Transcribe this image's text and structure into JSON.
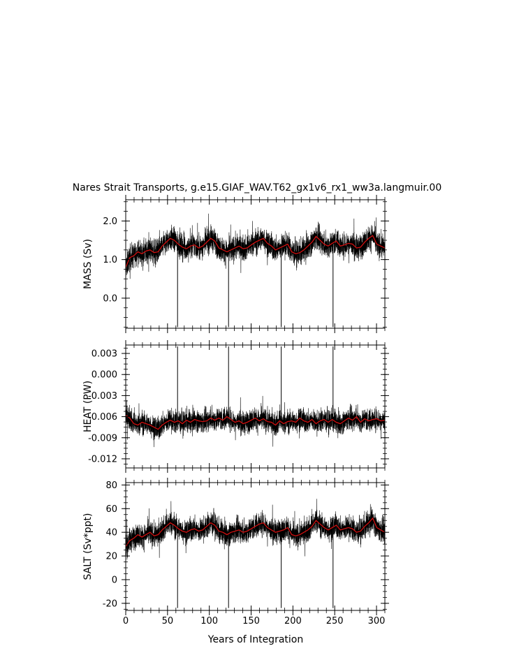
{
  "chart_data": {
    "type": "line",
    "title": "Nares Strait Transports, g.e15.GIAF_WAV.T62_gx1v6_rx1_ww3a.langmuir.00",
    "xlabel": "Years of Integration",
    "xlim": [
      0,
      310
    ],
    "x_ticks": [
      "0",
      "50",
      "100",
      "150",
      "200",
      "250",
      "300"
    ],
    "panels": [
      {
        "ylabel": "MASS (Sv)",
        "ylim": [
          -0.78,
          2.55
        ],
        "y_ticks": [
          0.0,
          1.0,
          2.0
        ],
        "y_tick_labels": [
          "0.0",
          "1.0",
          "2.0"
        ],
        "monthly_mean": 1.32,
        "monthly_spread": 0.32,
        "spike_low": -0.75,
        "annual_values": [
          0.8,
          1.05,
          1.1,
          1.2,
          1.15,
          1.22,
          1.25,
          1.18,
          1.2,
          1.35,
          1.45,
          1.55,
          1.5,
          1.4,
          1.32,
          1.28,
          1.35,
          1.38,
          1.3,
          1.35,
          1.45,
          1.55,
          1.48,
          1.3,
          1.25,
          1.2,
          1.25,
          1.3,
          1.35,
          1.28,
          1.3,
          1.38,
          1.45,
          1.5,
          1.55,
          1.42,
          1.35,
          1.25,
          1.3,
          1.35,
          1.4,
          1.2,
          1.15,
          1.18,
          1.25,
          1.35,
          1.45,
          1.6,
          1.5,
          1.4,
          1.35,
          1.42,
          1.48,
          1.35,
          1.38,
          1.42,
          1.4,
          1.3,
          1.32,
          1.45,
          1.55,
          1.62,
          1.4,
          1.35,
          1.3
        ],
        "series": [
          {
            "name": "",
            "color": "#000000",
            "style": "monthly"
          },
          {
            "name": "",
            "color": "#d01010",
            "style": "annual"
          }
        ]
      },
      {
        "ylabel": "HEAT (PW)",
        "ylim": [
          -0.0133,
          0.0042
        ],
        "y_ticks": [
          -0.012,
          -0.009,
          -0.006,
          -0.003,
          0.0,
          0.003
        ],
        "y_tick_labels": [
          "-0.012",
          "-0.009",
          "-0.006",
          "-0.003",
          "0.000",
          "0.003"
        ],
        "monthly_mean": -0.0066,
        "monthly_spread": 0.0016,
        "spike_high": 0.004,
        "annual_values": [
          -0.0058,
          -0.0062,
          -0.007,
          -0.0072,
          -0.0068,
          -0.007,
          -0.0072,
          -0.0075,
          -0.0078,
          -0.0072,
          -0.0068,
          -0.0065,
          -0.0068,
          -0.0066,
          -0.007,
          -0.0065,
          -0.0068,
          -0.0064,
          -0.0066,
          -0.0067,
          -0.0066,
          -0.0062,
          -0.0065,
          -0.0062,
          -0.0065,
          -0.006,
          -0.0064,
          -0.0068,
          -0.0066,
          -0.007,
          -0.0068,
          -0.0065,
          -0.0062,
          -0.0066,
          -0.0063,
          -0.0067,
          -0.0068,
          -0.0072,
          -0.0066,
          -0.007,
          -0.0067,
          -0.0066,
          -0.0068,
          -0.0062,
          -0.0066,
          -0.0068,
          -0.0064,
          -0.007,
          -0.0066,
          -0.0064,
          -0.0068,
          -0.0064,
          -0.0068,
          -0.007,
          -0.0066,
          -0.0062,
          -0.0065,
          -0.006,
          -0.0068,
          -0.0063,
          -0.0066,
          -0.0064,
          -0.0063,
          -0.0066,
          -0.0065
        ],
        "series": [
          {
            "name": "",
            "color": "#000000",
            "style": "monthly"
          },
          {
            "name": "",
            "color": "#d01010",
            "style": "annual"
          }
        ]
      },
      {
        "ylabel": "SALT (Sv*ppt)",
        "ylim": [
          -26,
          82
        ],
        "y_ticks": [
          -20,
          0,
          20,
          40,
          60,
          80
        ],
        "y_tick_labels": [
          "-20",
          "0",
          "20",
          "40",
          "60",
          "80"
        ],
        "monthly_mean": 42,
        "monthly_spread": 10,
        "spike_low": -24,
        "annual_values": [
          28,
          33,
          35,
          38,
          36,
          38,
          40,
          37,
          38,
          42,
          45,
          48,
          46,
          43,
          41,
          40,
          42,
          43,
          41,
          42,
          45,
          48,
          46,
          41,
          40,
          38,
          40,
          41,
          42,
          40,
          41,
          43,
          45,
          47,
          48,
          44,
          42,
          40,
          41,
          42,
          44,
          38,
          37,
          38,
          40,
          42,
          45,
          50,
          47,
          44,
          42,
          44,
          46,
          42,
          43,
          44,
          43,
          40,
          41,
          45,
          48,
          52,
          44,
          42,
          40
        ],
        "series": [
          {
            "name": "",
            "color": "#000000",
            "style": "monthly"
          },
          {
            "name": "",
            "color": "#d01010",
            "style": "annual"
          }
        ]
      }
    ],
    "spike_years": [
      62,
      123,
      186,
      248
    ],
    "grid": false,
    "legend": "none"
  }
}
